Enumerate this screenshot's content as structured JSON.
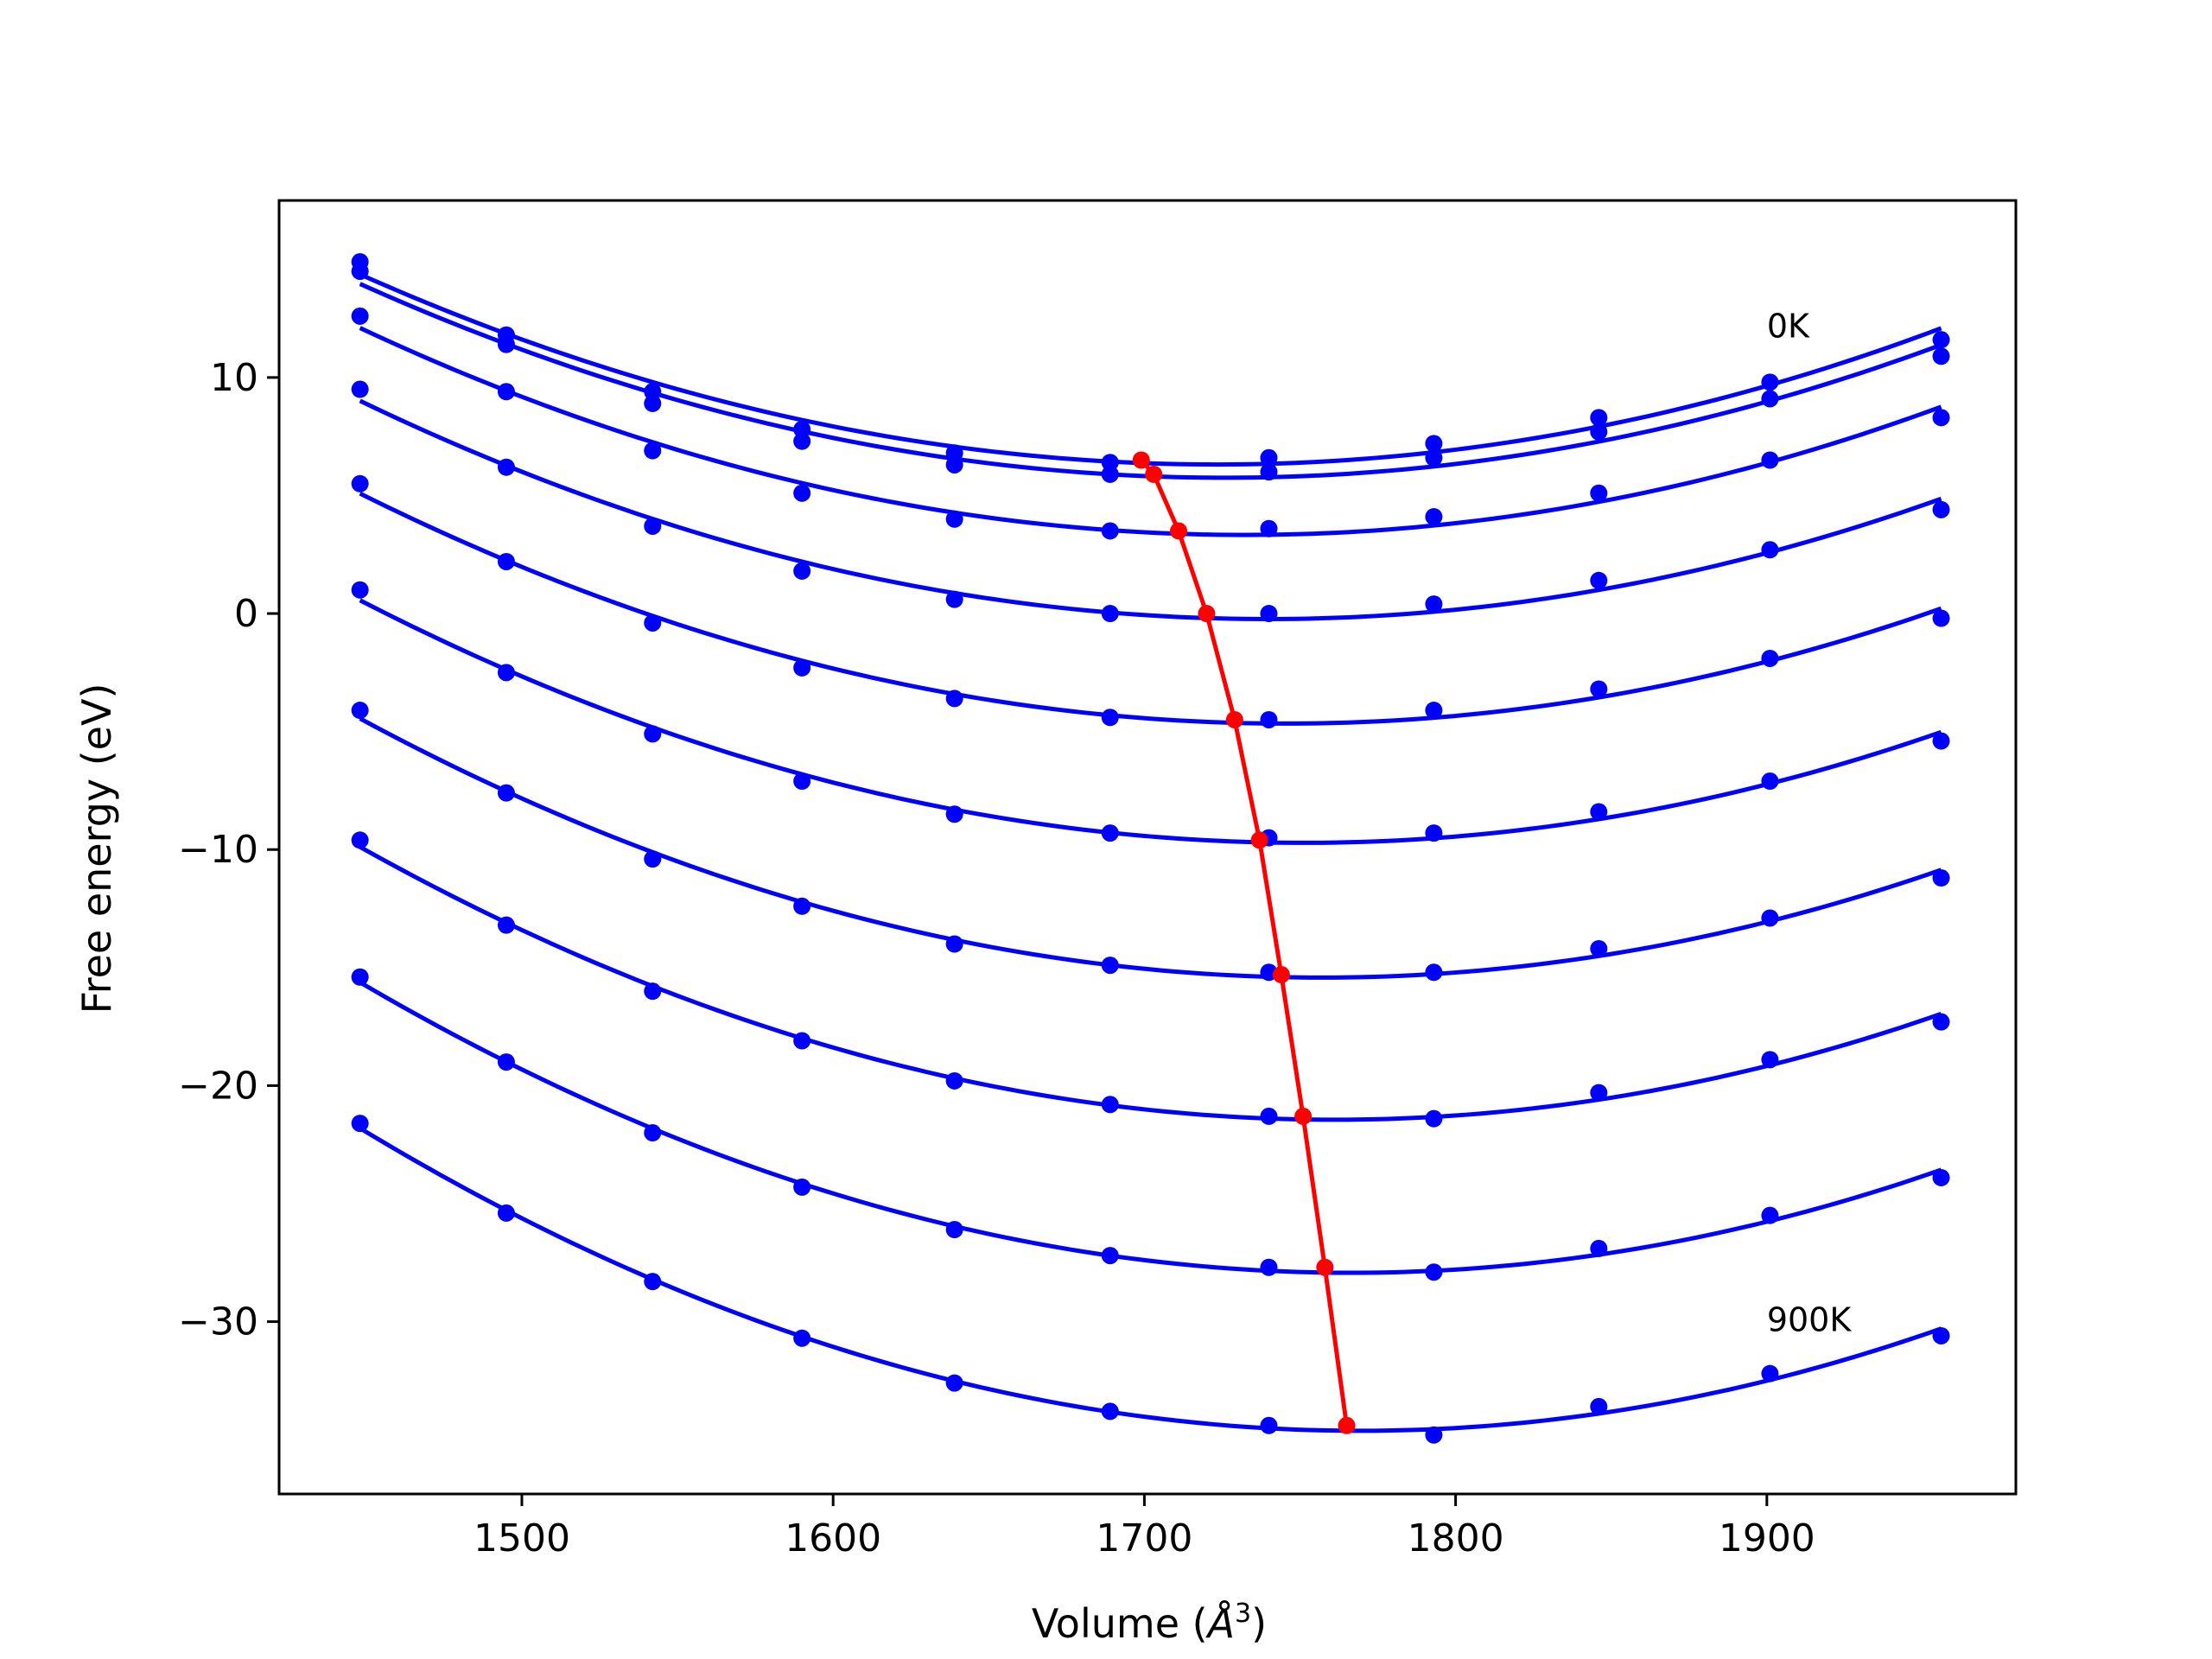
{
  "chart_data": {
    "type": "line",
    "title": "",
    "xlabel": "Volume (",
    "xlabel_unit_symbol": "Å",
    "xlabel_unit_exponent": "3",
    "xlabel_close": ")",
    "ylabel": "Free energy (eV)",
    "xlim": [
      1422,
      1980
    ],
    "ylim": [
      -37.3,
      17.5
    ],
    "xticks": [
      1500,
      1600,
      1700,
      1800,
      1900
    ],
    "xtick_labels": [
      "1500",
      "1600",
      "1700",
      "1800",
      "1900"
    ],
    "yticks": [
      10,
      0,
      -10,
      -20,
      -30
    ],
    "ytick_labels": [
      "10",
      "0",
      "−10",
      "−20",
      "−30"
    ],
    "grid": false,
    "legend": "none",
    "annotations": [
      {
        "text": "0K",
        "x": 1900,
        "y": 11.7
      },
      {
        "text": "900K",
        "x": 1900,
        "y": -30.4
      }
    ],
    "x": [
      1448,
      1495,
      1542,
      1590,
      1639,
      1689,
      1740,
      1793,
      1846,
      1901,
      1956
    ],
    "series": [
      {
        "values": [
          14.9,
          11.8,
          9.4,
          7.8,
          6.8,
          6.4,
          6.6,
          7.2,
          8.3,
          9.8,
          11.6
        ]
      },
      {
        "values": [
          14.5,
          11.4,
          8.9,
          7.3,
          6.3,
          5.9,
          6.0,
          6.6,
          7.7,
          9.1,
          10.9
        ]
      },
      {
        "values": [
          12.6,
          9.4,
          6.9,
          5.1,
          4.0,
          3.5,
          3.6,
          4.1,
          5.1,
          6.5,
          8.3
        ]
      },
      {
        "values": [
          9.5,
          6.2,
          3.7,
          1.8,
          0.6,
          0.0,
          0.0,
          0.4,
          1.4,
          2.7,
          4.4
        ]
      },
      {
        "values": [
          5.5,
          2.2,
          -0.4,
          -2.3,
          -3.6,
          -4.4,
          -4.5,
          -4.1,
          -3.2,
          -1.9,
          -0.2
        ]
      },
      {
        "values": [
          1.0,
          -2.5,
          -5.1,
          -7.1,
          -8.5,
          -9.3,
          -9.5,
          -9.3,
          -8.4,
          -7.1,
          -5.4
        ]
      },
      {
        "values": [
          -4.1,
          -7.6,
          -10.4,
          -12.4,
          -14.0,
          -14.9,
          -15.2,
          -15.2,
          -14.2,
          -12.9,
          -11.2
        ]
      },
      {
        "values": [
          -9.6,
          -13.2,
          -16.0,
          -18.1,
          -19.8,
          -20.8,
          -21.3,
          -21.4,
          -20.3,
          -18.9,
          -17.3
        ]
      },
      {
        "values": [
          -15.4,
          -19.0,
          -22.0,
          -24.3,
          -26.1,
          -27.2,
          -27.7,
          -27.9,
          -26.9,
          -25.5,
          -23.9
        ]
      },
      {
        "values": [
          -21.6,
          -25.4,
          -28.3,
          -30.7,
          -32.6,
          -33.8,
          -34.4,
          -34.8,
          -33.6,
          -32.2,
          -30.6
        ]
      }
    ],
    "minimum_line": {
      "color": "#ff0000",
      "x": [
        1699,
        1703,
        1711,
        1720,
        1729,
        1737,
        1744,
        1751,
        1758,
        1765
      ],
      "y": [
        6.5,
        5.9,
        3.5,
        0.0,
        -4.5,
        -9.6,
        -15.3,
        -21.3,
        -27.7,
        -34.4
      ]
    },
    "series_color": "#0000ff"
  }
}
